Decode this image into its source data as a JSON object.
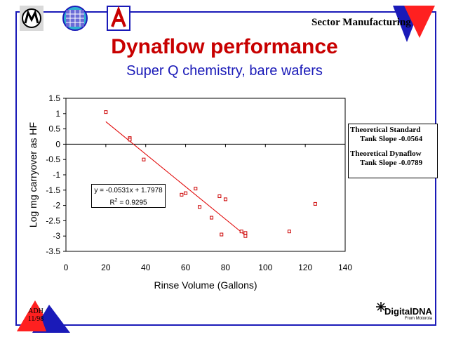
{
  "header": {
    "title": "Dynaflow performance",
    "subtitle": "Super Q chemistry, bare wafers",
    "sector": "Sector Manufacturing",
    "logos": [
      "motorola-logo",
      "globe-grid-logo",
      "university-a-logo"
    ]
  },
  "chart_data": {
    "type": "scatter",
    "xlabel": "Rinse Volume (Gallons)",
    "ylabel": "Log mg carryover as HF",
    "xlim": [
      0,
      140
    ],
    "ylim": [
      -3.5,
      1.5
    ],
    "x_ticks": [
      "0",
      "20",
      "40",
      "60",
      "80",
      "100",
      "120",
      "140"
    ],
    "y_ticks": [
      "1.5",
      "1",
      "0.5",
      "0",
      "-0.5",
      "-1",
      "-1.5",
      "-2",
      "-2.5",
      "-3",
      "-3.5"
    ],
    "x_tick_values": [
      0,
      20,
      40,
      60,
      80,
      100,
      120,
      140
    ],
    "y_tick_values": [
      1.5,
      1,
      0.5,
      0,
      -0.5,
      -1,
      -1.5,
      -2,
      -2.5,
      -3,
      -3.5
    ],
    "grid": false,
    "marker_color": "#cc0000",
    "trendline_color": "#e00000",
    "points": [
      {
        "x": 20,
        "y": 1.05
      },
      {
        "x": 32,
        "y": 0.2
      },
      {
        "x": 32,
        "y": 0.15
      },
      {
        "x": 39,
        "y": -0.5
      },
      {
        "x": 58,
        "y": -1.65
      },
      {
        "x": 60,
        "y": -1.6
      },
      {
        "x": 65,
        "y": -1.45
      },
      {
        "x": 67,
        "y": -2.05
      },
      {
        "x": 73,
        "y": -2.4
      },
      {
        "x": 77,
        "y": -1.7
      },
      {
        "x": 78,
        "y": -2.95
      },
      {
        "x": 80,
        "y": -1.8
      },
      {
        "x": 88,
        "y": -2.85
      },
      {
        "x": 90,
        "y": -2.9
      },
      {
        "x": 90,
        "y": -3.0
      },
      {
        "x": 112,
        "y": -2.85
      },
      {
        "x": 125,
        "y": -1.95
      }
    ],
    "trendline": {
      "slope": -0.0531,
      "intercept": 1.7978,
      "x_range": [
        20,
        90
      ]
    },
    "equation_line1": "y = -0.0531x + 1.7978",
    "equation_r2_base": "R",
    "equation_r2_exp": "2",
    "equation_r2_value": " = 0.9295"
  },
  "theory_box": {
    "line1": "Theoretical Standard",
    "line2": "Tank Slope  -0.0564",
    "line3": "Theoretical Dynaflow",
    "line4": "Tank Slope  -0.0789"
  },
  "footer": {
    "adh_line1": "ADH",
    "adh_line2": "11/98",
    "brand": "DigitalDNA",
    "brand_sub": "From Motorola"
  }
}
